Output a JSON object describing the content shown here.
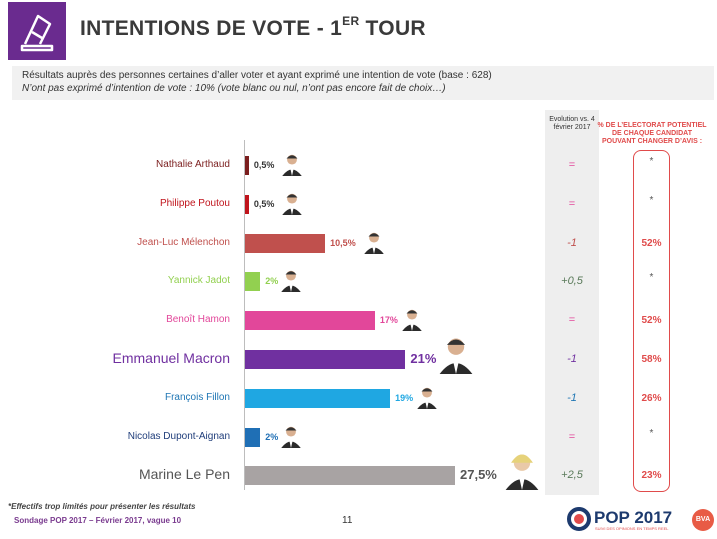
{
  "header": {
    "title": "INTENTIONS DE VOTE - 1",
    "title_sup": "ER",
    "title_end": " TOUR",
    "subtitle_1": "Résultats auprès des personnes certaines d’aller voter et ayant exprimé une intention de vote (base : 628)",
    "subtitle_2": "N’ont pas exprimé d’intention de vote : 10% (vote blanc ou nul, n’ont pas encore fait de choix…)"
  },
  "columns": {
    "evolution_header": "Evolution vs. 4 février 2017",
    "potential_header": "% DE L’ELECTORAT POTENTIEL DE CHAQUE CANDIDAT POUVANT CHANGER D’AVIS :"
  },
  "chart_data": {
    "type": "bar",
    "orientation": "horizontal",
    "categories": [
      "Nathalie Arthaud",
      "Philippe Poutou",
      "Jean-Luc Mélenchon",
      "Yannick Jadot",
      "Benoît Hamon",
      "Emmanuel Macron",
      "François Fillon",
      "Nicolas Dupont-Aignan",
      "Marine Le Pen"
    ],
    "values": [
      0.5,
      0.5,
      10.5,
      2,
      17,
      21,
      19,
      2,
      27.5
    ],
    "value_labels": [
      "0,5%",
      "0,5%",
      "10,5%",
      "2%",
      "17%",
      "21%",
      "19%",
      "2%",
      "27,5%"
    ],
    "colors": [
      "#7b1e1e",
      "#c0141c",
      "#c0504d",
      "#92d050",
      "#e2479a",
      "#7030a0",
      "#1fa7e2",
      "#1f6fb5",
      "#a8a3a3"
    ],
    "name_colors": [
      "#7b1e1e",
      "#c0141c",
      "#c0504d",
      "#92d050",
      "#e2479a",
      "#7030a0",
      "#1f76b4",
      "#1f3d7a",
      "#555555"
    ],
    "evolution": [
      "=",
      "=",
      "-1",
      "+0,5",
      "=",
      "-1",
      "-1",
      "=",
      "+2,5"
    ],
    "potential_change": [
      "*",
      "*",
      "52%",
      "*",
      "52%",
      "58%",
      "26%",
      "*",
      "23%"
    ],
    "xlim": [
      0,
      27.5
    ]
  },
  "footer": {
    "footnote": "*Effectifs trop limités pour présenter les résultats",
    "source": "Sondage POP 2017 – Février 2017, vague 10",
    "page": "11",
    "brand": "POP 2017",
    "brand_tagline": "SUIVI DES OPINIONS EN TEMPS REEL",
    "partner": "BVA"
  }
}
